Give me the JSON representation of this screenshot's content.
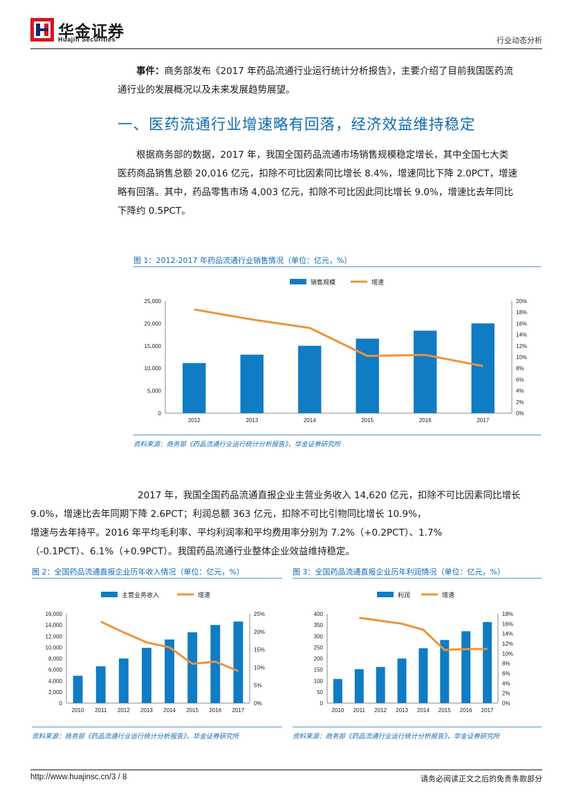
{
  "header": {
    "logo_cn": "华金证券",
    "logo_en": "Huajin Securities",
    "report_type": "行业动态分析"
  },
  "event": {
    "label": "事件：",
    "line1": "商务部发布《2017 年药品流通行业运行统计分析报告》，主要介绍了目前我国医药流",
    "line2": "通行业的发展概况以及未来发展趋势展望。"
  },
  "section1": {
    "heading": "一、医药流通行业增速略有回落，经济效益维持稳定",
    "p1": [
      "根据商务部的数据，2017 年，我国全国药品流通市场销售规模稳定增长，其中全国七大类",
      "医药商品销售总额 20,016 亿元，扣除不可比因素同比增长 8.4%，增速同比下降 2.0PCT，增速",
      "略有回落。其中，药品零售市场 4,003 亿元，扣除不可比因此同比增长 9.0%，增速比去年同比",
      "下降约 0.5PCT。"
    ],
    "p2": [
      "2017 年，我国全国药品流通直报企业主营业务收入 14,620 亿元，扣除不可比因素同比增长",
      "9.0%，增速比去年同期下降 2.6PCT；利润总额 363 亿元，扣除不可比引物同比增长 10.9%，",
      "增速与去年持平。2016 年平均毛利率、平均利润率和平均费用率分别为 7.2%（+0.2PCT）、1.7%",
      "（-0.1PCT）、6.1%（+0.9PCT）。我国药品流通行业整体企业效益维持稳定。"
    ]
  },
  "figures": {
    "fig1_title": "图 1：2012-2017 年药品流通行业销售情况（单位：亿元，%）",
    "fig1_source": "资料来源：商务部《药品流通行业运行统计分析报告》，华金证券研究所",
    "fig2_title": "图 2：全国药品流通直报企业历年收入情况（单位：亿元，%）",
    "fig2_source": "资料来源：商务部《药品流通行业运行统计分析报告》，华金证券研究所",
    "fig3_title": "图 3：全国药品流通直报企业历年利润情况（单位：亿元，%）",
    "fig3_source": "资料来源：商务部《药品流通行业运行统计分析报告》，华金证券研究所"
  },
  "chart_data": [
    {
      "type": "bar",
      "title": "2012-2017 年药品流通行业销售情况（单位：亿元，%）",
      "categories": [
        "2012",
        "2013",
        "2014",
        "2015",
        "2016",
        "2017"
      ],
      "series": [
        {
          "name": "销售规模",
          "kind": "bar",
          "axis": "left",
          "values": [
            11174,
            13036,
            15021,
            16613,
            18393,
            20016
          ]
        },
        {
          "name": "增速",
          "kind": "line",
          "axis": "right",
          "values": [
            18.5,
            16.7,
            15.2,
            10.2,
            10.4,
            8.4
          ]
        }
      ],
      "yleft": {
        "min": 0,
        "max": 25000,
        "ticks": [
          "0",
          "5,000",
          "10,000",
          "15,000",
          "20,000",
          "25,000"
        ]
      },
      "yright": {
        "min": 0,
        "max": 20,
        "ticks": [
          "0%",
          "2%",
          "4%",
          "6%",
          "8%",
          "10%",
          "12%",
          "14%",
          "16%",
          "18%",
          "20%"
        ]
      },
      "legend": "top-center"
    },
    {
      "type": "bar",
      "title": "全国药品流通直报企业历年收入情况（单位：亿元，%）",
      "categories": [
        "2010",
        "2011",
        "2012",
        "2013",
        "2014",
        "2015",
        "2016",
        "2017"
      ],
      "series": [
        {
          "name": "主营业务收入",
          "kind": "bar",
          "axis": "left",
          "values": [
            4900,
            6600,
            8000,
            9900,
            11400,
            12700,
            14000,
            14620
          ]
        },
        {
          "name": "增速",
          "kind": "line",
          "axis": "right",
          "values": [
            null,
            22.8,
            19.8,
            17.0,
            15.6,
            11.0,
            11.6,
            9.0
          ]
        }
      ],
      "yleft": {
        "min": 0,
        "max": 16000,
        "ticks": [
          "0",
          "2,000",
          "4,000",
          "6,000",
          "8,000",
          "10,000",
          "12,000",
          "14,000",
          "16,000"
        ]
      },
      "yright": {
        "min": 0,
        "max": 25,
        "ticks": [
          "0%",
          "5%",
          "10%",
          "15%",
          "20%",
          "25%"
        ]
      },
      "legend": "top-center"
    },
    {
      "type": "bar",
      "title": "全国药品流通直报企业历年利润情况（单位：亿元，%）",
      "categories": [
        "2010",
        "2011",
        "2012",
        "2013",
        "2014",
        "2015",
        "2016",
        "2017"
      ],
      "series": [
        {
          "name": "利润",
          "kind": "bar",
          "axis": "left",
          "values": [
            108,
            152,
            162,
            200,
            246,
            283,
            322,
            363
          ]
        },
        {
          "name": "增速",
          "kind": "line",
          "axis": "right",
          "values": [
            null,
            17.2,
            16.6,
            16.0,
            14.8,
            10.7,
            10.9,
            10.9
          ]
        }
      ],
      "yleft": {
        "min": 0,
        "max": 400,
        "ticks": [
          "0",
          "50",
          "100",
          "150",
          "200",
          "250",
          "300",
          "350",
          "400"
        ]
      },
      "yright": {
        "min": 0,
        "max": 18,
        "ticks": [
          "0%",
          "2%",
          "4%",
          "6%",
          "8%",
          "10%",
          "12%",
          "14%",
          "16%",
          "18%"
        ]
      },
      "legend": "top-center"
    }
  ],
  "colors": {
    "bar": "#0f7cc4",
    "line": "#f0913a",
    "accent": "#0f6ab4",
    "logo_red": "#d9141c"
  },
  "footer": {
    "url": "http://www.huajinsc.cn/",
    "page": "3 / 8",
    "disclaimer": "请务必阅读正文之后的免责条款部分"
  }
}
